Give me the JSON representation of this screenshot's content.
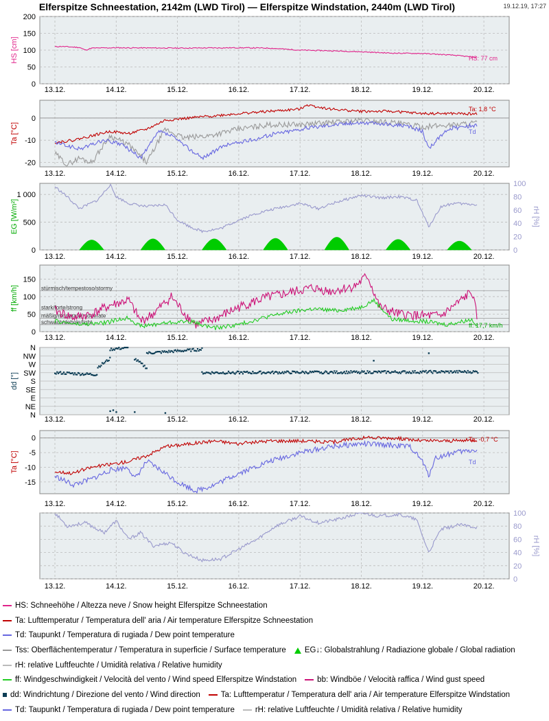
{
  "header": {
    "title": "Elferspitze Schneestation, 2142m (LWD Tirol) — Elferspitze Windstation, 2440m (LWD Tirol)",
    "timestamp": "19.12.19, 17:27"
  },
  "colors": {
    "hs": "#e0228a",
    "ta": "#c00000",
    "td": "#6666e0",
    "tss": "#999999",
    "eg": "#00cc00",
    "rh": "#9999cc",
    "ff": "#22cc22",
    "bb": "#cc1177",
    "dd": "#0d3d55",
    "plot_bg": "#e9eef0",
    "grid": "#bbbbbb"
  },
  "x_ticks": [
    "13.12.",
    "14.12.",
    "15.12.",
    "16.12.",
    "17.12.",
    "18.12.",
    "19.12.",
    "20.12."
  ],
  "chart_data": [
    {
      "id": "hs",
      "type": "line",
      "ylabel": "HS [cm]",
      "ylim": [
        0,
        200
      ],
      "yticks": [
        "0",
        "50",
        "100",
        "150",
        "200"
      ],
      "annotation": "HS: 77 cm",
      "grid": true,
      "series": [
        {
          "name": "HS",
          "color": "#e0228a",
          "x": [
            0,
            0.1,
            0.4,
            0.5,
            0.6,
            1.0,
            2.0,
            3.0,
            3.5,
            4.0,
            4.5,
            5.0,
            5.5,
            6.0,
            6.5,
            6.9
          ],
          "y": [
            110,
            111,
            108,
            100,
            106,
            107,
            106,
            107,
            106,
            100,
            98,
            95,
            91,
            90,
            85,
            78
          ]
        }
      ]
    },
    {
      "id": "ta_snow",
      "type": "line",
      "ylabel": "Ta [°C]",
      "ylim": [
        -22,
        8
      ],
      "yticks": [
        "-20",
        "-10",
        "0"
      ],
      "annotation_ta": "Ta: 1,8 °C",
      "annotation_td": "Td",
      "grid": true,
      "series": [
        {
          "name": "Ta",
          "color": "#c00000",
          "x": [
            0,
            0.3,
            0.6,
            0.9,
            1.2,
            1.5,
            1.8,
            2.2,
            2.6,
            3.0,
            3.5,
            4.0,
            4.1,
            4.5,
            5.0,
            5.5,
            6.0,
            6.5,
            6.9
          ],
          "y": [
            -11,
            -10,
            -8,
            -6,
            -7,
            -5,
            -1,
            0,
            1,
            2,
            3,
            4,
            6,
            4,
            3,
            3,
            2,
            2,
            1.8
          ]
        },
        {
          "name": "Tss",
          "color": "#999999",
          "x": [
            0,
            0.2,
            0.4,
            0.6,
            0.9,
            1.2,
            1.5,
            1.8,
            2.1,
            2.5,
            3.0,
            3.5,
            4.0,
            4.5,
            5.0,
            5.5,
            6.0,
            6.5,
            6.9
          ],
          "y": [
            -16,
            -21,
            -18,
            -20,
            -8,
            -12,
            -20,
            -5,
            -9,
            -8,
            -5,
            -3,
            -3,
            -2,
            -1,
            -2,
            -4,
            -3,
            -2
          ]
        },
        {
          "name": "Td",
          "color": "#6666e0",
          "x": [
            0,
            0.4,
            0.8,
            1.1,
            1.4,
            1.7,
            1.9,
            2.1,
            2.4,
            2.8,
            3.2,
            3.6,
            4.0,
            4.5,
            5.0,
            5.5,
            5.8,
            6.0,
            6.1,
            6.4,
            6.9
          ],
          "y": [
            -11,
            -14,
            -10,
            -12,
            -18,
            -6,
            -8,
            -12,
            -18,
            -12,
            -10,
            -7,
            -5,
            -3,
            -2,
            -3,
            -4,
            -6,
            -14,
            -5,
            -3
          ]
        }
      ]
    },
    {
      "id": "eg_rh",
      "type": "area",
      "ylabel": "EG [W/m²]",
      "ylabel_right": "rH [%]",
      "ylim": [
        0,
        1200
      ],
      "yticks": [
        "0",
        "500",
        "1 000"
      ],
      "ylim_right": [
        0,
        100
      ],
      "yticks_right": [
        "0",
        "20",
        "40",
        "60",
        "80",
        "100"
      ],
      "grid": true,
      "series": [
        {
          "name": "EG",
          "color": "#00cc00",
          "days": [
            0.6,
            1.6,
            2.6,
            3.6,
            4.6,
            5.6,
            6.6
          ],
          "peaks": [
            180,
            200,
            200,
            210,
            230,
            190,
            160
          ]
        },
        {
          "name": "rH",
          "color": "#9999cc",
          "axis": "right",
          "x": [
            0,
            0.2,
            0.4,
            0.7,
            0.9,
            1.0,
            1.2,
            1.5,
            1.8,
            2.0,
            2.2,
            2.4,
            2.7,
            3.0,
            3.3,
            3.6,
            4.0,
            4.3,
            4.6,
            5.0,
            5.3,
            5.6,
            5.9,
            6.0,
            6.1,
            6.3,
            6.5,
            6.9
          ],
          "y": [
            95,
            80,
            62,
            75,
            98,
            80,
            70,
            65,
            68,
            45,
            35,
            28,
            32,
            45,
            55,
            62,
            70,
            62,
            72,
            82,
            78,
            80,
            75,
            55,
            35,
            65,
            70,
            68
          ]
        }
      ]
    },
    {
      "id": "wind",
      "type": "line",
      "ylabel": "ff [km/h]",
      "ylim": [
        0,
        190
      ],
      "yticks": [
        "0",
        "50",
        "100",
        "150"
      ],
      "threshold_labels": [
        "stürmisch/tempestoso/stormy",
        "stark/forte/strong",
        "mäßig/moderato/moderate",
        "schwach/debole/light"
      ],
      "annotation": "ff: 17,7 km/h",
      "grid": true,
      "series": [
        {
          "name": "bb",
          "color": "#cc1177",
          "x": [
            0,
            0.3,
            0.6,
            0.9,
            1.2,
            1.4,
            1.6,
            1.9,
            2.1,
            2.3,
            2.6,
            3.0,
            3.4,
            3.8,
            4.2,
            4.5,
            4.9,
            5.1,
            5.3,
            5.6,
            6.0,
            6.3,
            6.6,
            6.8,
            6.9
          ],
          "y": [
            60,
            40,
            50,
            75,
            90,
            30,
            50,
            100,
            55,
            20,
            35,
            70,
            95,
            110,
            125,
            115,
            130,
            160,
            70,
            50,
            45,
            45,
            85,
            115,
            35
          ]
        },
        {
          "name": "ff",
          "color": "#22cc22",
          "x": [
            0,
            0.4,
            0.8,
            1.2,
            1.4,
            1.8,
            2.2,
            2.6,
            3.0,
            3.4,
            3.8,
            4.2,
            4.6,
            5.0,
            5.2,
            5.5,
            6.0,
            6.4,
            6.8,
            6.9
          ],
          "y": [
            30,
            20,
            25,
            40,
            15,
            25,
            30,
            10,
            20,
            40,
            55,
            65,
            60,
            70,
            90,
            35,
            30,
            20,
            35,
            18
          ]
        }
      ]
    },
    {
      "id": "dd",
      "type": "scatter",
      "ylabel": "dd [°]",
      "yticks": [
        "N",
        "NE",
        "E",
        "SE",
        "S",
        "SW",
        "W",
        "NW",
        "N"
      ],
      "grid": true,
      "series": [
        {
          "name": "dd",
          "color": "#0d3d55",
          "segments": [
            {
              "x": [
                0.0,
                0.7
              ],
              "deg": [
                225,
                215
              ]
            },
            {
              "x": [
                0.7,
                0.9
              ],
              "deg": [
                255,
                300
              ]
            },
            {
              "x": [
                0.9,
                1.2
              ],
              "deg": [
                350,
                360
              ]
            },
            {
              "x": [
                1.3,
                1.5
              ],
              "deg": [
                300,
                250
              ]
            },
            {
              "x": [
                1.5,
                2.4
              ],
              "deg": [
                330,
                350
              ]
            },
            {
              "x": [
                2.4,
                6.9
              ],
              "deg": [
                225,
                230
              ]
            }
          ],
          "outliers": {
            "x": [
              0.9,
              0.95,
              1.0,
              1.3,
              1.8,
              5.2,
              6.1
            ],
            "deg": [
              20,
              25,
              15,
              15,
              10,
              290,
              330
            ]
          }
        }
      ]
    },
    {
      "id": "ta_wind",
      "type": "line",
      "ylabel": "Ta [°C]",
      "ylim": [
        -19,
        2.5
      ],
      "yticks": [
        "-15",
        "-10",
        "-5",
        "0"
      ],
      "annotation_ta": "Ta: -0,7 °C",
      "annotation_td": "Td",
      "grid": true,
      "series": [
        {
          "name": "Ta",
          "color": "#c00000",
          "x": [
            0,
            0.3,
            0.6,
            0.9,
            1.2,
            1.5,
            1.8,
            2.2,
            2.6,
            3.0,
            3.5,
            4.0,
            4.5,
            5.0,
            5.5,
            6.0,
            6.5,
            6.9
          ],
          "y": [
            -11.5,
            -12,
            -10,
            -9,
            -8,
            -6,
            -3,
            -2,
            -1,
            -2,
            -1,
            -1,
            -1.5,
            0,
            0,
            -1,
            -1,
            -0.7
          ]
        },
        {
          "name": "Td",
          "color": "#6666e0",
          "x": [
            0,
            0.3,
            0.6,
            0.9,
            1.2,
            1.3,
            1.5,
            1.8,
            2.0,
            2.3,
            2.6,
            3.0,
            3.5,
            4.0,
            4.5,
            5.0,
            5.5,
            5.8,
            6.0,
            6.1,
            6.2,
            6.5,
            6.9
          ],
          "y": [
            -13,
            -16,
            -14,
            -11,
            -10,
            -14,
            -8,
            -12,
            -15,
            -18,
            -16,
            -12,
            -8,
            -5,
            -3,
            -2,
            -2.5,
            -3,
            -8,
            -13,
            -7,
            -5,
            -4
          ]
        }
      ]
    },
    {
      "id": "rh_wind",
      "type": "line",
      "ylabel_right": "rH [%]",
      "ylim_right": [
        0,
        100
      ],
      "yticks_right": [
        "0",
        "20",
        "40",
        "60",
        "80",
        "100"
      ],
      "grid": true,
      "series": [
        {
          "name": "rH",
          "color": "#9999cc",
          "x": [
            0,
            0.2,
            0.5,
            0.8,
            1.0,
            1.2,
            1.4,
            1.6,
            1.9,
            2.1,
            2.4,
            2.7,
            3.0,
            3.3,
            3.6,
            4.0,
            4.3,
            4.6,
            5.0,
            5.3,
            5.6,
            5.9,
            6.1,
            6.3,
            6.6,
            6.9
          ],
          "y": [
            100,
            80,
            85,
            70,
            88,
            60,
            70,
            50,
            55,
            40,
            28,
            30,
            45,
            60,
            80,
            95,
            85,
            90,
            100,
            95,
            98,
            90,
            40,
            75,
            82,
            78
          ]
        }
      ]
    }
  ],
  "legend": [
    [
      {
        "marker": "line",
        "color": "#e0228a",
        "text": "HS: Schneehöhe / Altezza neve / Snow height  Elferspitze Schneestation"
      }
    ],
    [
      {
        "marker": "line",
        "color": "#c00000",
        "text": "Ta: Lufttemperatur / Temperatura dell' aria / Air temperature  Elferspitze Schneestation"
      }
    ],
    [
      {
        "marker": "line",
        "color": "#6666e0",
        "text": "Td: Taupunkt / Temperatura di rugiada / Dew point temperature"
      }
    ],
    [
      {
        "marker": "line",
        "color": "#999999",
        "text": "Tss: Oberflächentemperatur / Temperatura in superficie / Surface temperature"
      },
      {
        "marker": "triangle",
        "color": "#00cc00",
        "text": "EG↓: Globalstrahlung / Radiazione globale / Global radiation"
      }
    ],
    [
      {
        "marker": "line",
        "color": "#bbbbbb",
        "text": "rH: relative Luftfeuchte / Umidità relativa / Relative humidity"
      }
    ],
    [
      {
        "marker": "line",
        "color": "#22cc22",
        "text": "ff: Windgeschwindigkeit / Velocità del vento / Wind speed  Elferspitze Windstation"
      },
      {
        "marker": "line",
        "color": "#cc1177",
        "text": "bb: Windböe / Velocità raffica / Wind gust speed"
      }
    ],
    [
      {
        "marker": "square",
        "color": "#0d3d55",
        "text": "dd: Windrichtung / Direzione del vento / Wind direction"
      },
      {
        "marker": "line",
        "color": "#c00000",
        "text": "Ta: Lufttemperatur / Temperatura dell' aria / Air temperature  Elferspitze Windstation"
      }
    ],
    [
      {
        "marker": "line",
        "color": "#6666e0",
        "text": "Td: Taupunkt / Temperatura di rugiada / Dew point temperature"
      },
      {
        "marker": "line",
        "color": "#bbbbbb",
        "text": "rH: relative Luftfeuchte / Umidità relativa / Relative humidity"
      }
    ]
  ]
}
